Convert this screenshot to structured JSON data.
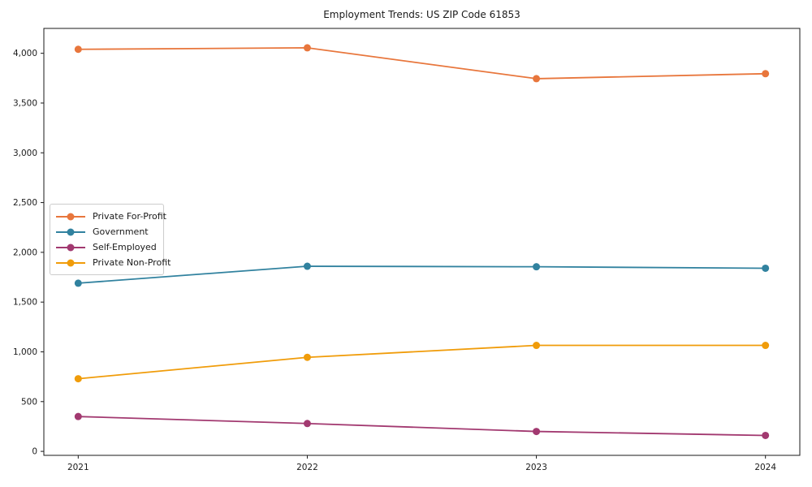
{
  "chart_data": {
    "type": "line",
    "title": "Employment Trends: US ZIP Code 61853",
    "x": [
      2021,
      2022,
      2023,
      2024
    ],
    "x_tick_labels": [
      "2021",
      "2022",
      "2023",
      "2024"
    ],
    "series": [
      {
        "name": "Private For-Profit",
        "color": "#e8763c",
        "values": [
          4040,
          4055,
          3745,
          3795
        ]
      },
      {
        "name": "Government",
        "color": "#31829f",
        "values": [
          1690,
          1860,
          1855,
          1840
        ]
      },
      {
        "name": "Self-Employed",
        "color": "#a23970",
        "values": [
          350,
          280,
          200,
          160
        ]
      },
      {
        "name": "Private Non-Profit",
        "color": "#f09c0a",
        "values": [
          730,
          945,
          1065,
          1065
        ]
      }
    ],
    "y_ticks": [
      0,
      500,
      1000,
      1500,
      2000,
      2500,
      3000,
      3500,
      4000
    ],
    "y_tick_labels": [
      "0",
      "500",
      "1,000",
      "1,500",
      "2,000",
      "2,500",
      "3,000",
      "3,500",
      "4,000"
    ],
    "xlim": [
      2020.85,
      2024.15
    ],
    "ylim": [
      -40,
      4250
    ],
    "grid": false,
    "legend_position": "center-left",
    "axis_color": "#1a1a1a",
    "background_color": "#ffffff"
  }
}
